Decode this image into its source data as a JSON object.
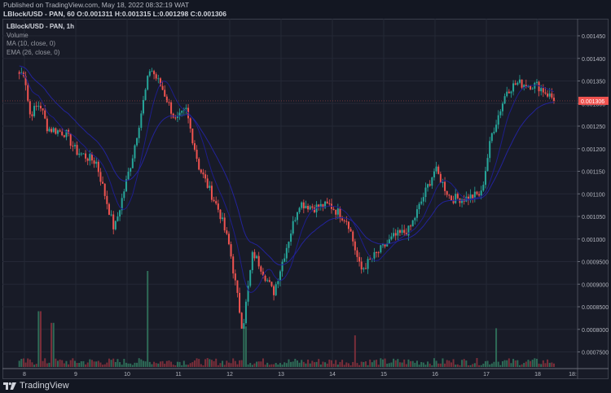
{
  "header": {
    "published": "Published on TradingView.com, May 18, 2022 08:32:19 WAT",
    "symbol_line": "LBlock/USD - PAN, 60",
    "ohlc": {
      "O": "0.001311",
      "H": "0.001315",
      "L": "0.001298",
      "C": "0.001306"
    }
  },
  "legend": {
    "title": "LBlock/USD - PAN, 1h",
    "items": [
      "Volume",
      "MA (10, close, 0)",
      "EMA (26, close, 0)"
    ]
  },
  "footer": {
    "brand": "TradingView"
  },
  "colors": {
    "background": "#181b27",
    "up": "#26a69a",
    "down": "#ef5350",
    "vol_up": "#2e6b57",
    "vol_down": "#7a2e3a",
    "ma": "#1e1e8a",
    "ema": "#23239a",
    "grid": "#242836",
    "last_price_bg": "#f05350"
  },
  "chart_data": {
    "type": "candlestick",
    "title": "LBlock/USD - PAN, 1h",
    "timeframe": "1h",
    "xlabel": "",
    "ylabel": "",
    "x_ticks": [
      "8",
      "9",
      "10",
      "11",
      "12",
      "13",
      "14",
      "15",
      "16",
      "17",
      "18",
      "18:"
    ],
    "y_ticks": [
      "0.001450",
      "0.001400",
      "0.001350",
      "0.001300",
      "0.001250",
      "0.001200",
      "0.001150",
      "0.001100",
      "0.001050",
      "0.001000",
      "0.0009500",
      "0.0009000",
      "0.0008500",
      "0.0008000",
      "0.0007500"
    ],
    "ylim": [
      0.00073,
      0.00148
    ],
    "last_price": "0.001306",
    "grid": true,
    "indicators": [
      "Volume",
      "MA (10, close, 0)",
      "EMA (26, close, 0)"
    ],
    "approx_close_path": [
      {
        "day": 7.9,
        "close": 0.001365
      },
      {
        "day": 8.0,
        "close": 0.00137
      },
      {
        "day": 8.1,
        "close": 0.001275
      },
      {
        "day": 8.3,
        "close": 0.0013
      },
      {
        "day": 8.45,
        "close": 0.001245
      },
      {
        "day": 8.8,
        "close": 0.001235
      },
      {
        "day": 9.0,
        "close": 0.001195
      },
      {
        "day": 9.4,
        "close": 0.00117
      },
      {
        "day": 9.75,
        "close": 0.00102
      },
      {
        "day": 10.1,
        "close": 0.00118
      },
      {
        "day": 10.45,
        "close": 0.00138
      },
      {
        "day": 10.7,
        "close": 0.00133
      },
      {
        "day": 10.95,
        "close": 0.00126
      },
      {
        "day": 11.15,
        "close": 0.001285
      },
      {
        "day": 11.4,
        "close": 0.00116
      },
      {
        "day": 11.8,
        "close": 0.00106
      },
      {
        "day": 12.0,
        "close": 0.00098
      },
      {
        "day": 12.25,
        "close": 0.0008
      },
      {
        "day": 12.45,
        "close": 0.00097
      },
      {
        "day": 12.6,
        "close": 0.00094
      },
      {
        "day": 12.85,
        "close": 0.00088
      },
      {
        "day": 13.35,
        "close": 0.00108
      },
      {
        "day": 13.65,
        "close": 0.00107
      },
      {
        "day": 13.95,
        "close": 0.001075
      },
      {
        "day": 14.3,
        "close": 0.00104
      },
      {
        "day": 14.55,
        "close": 0.00093
      },
      {
        "day": 14.8,
        "close": 0.00096
      },
      {
        "day": 15.2,
        "close": 0.001005
      },
      {
        "day": 15.5,
        "close": 0.00102
      },
      {
        "day": 16.0,
        "close": 0.001155
      },
      {
        "day": 16.3,
        "close": 0.00109
      },
      {
        "day": 16.6,
        "close": 0.00109
      },
      {
        "day": 16.9,
        "close": 0.0011
      },
      {
        "day": 17.1,
        "close": 0.00123
      },
      {
        "day": 17.4,
        "close": 0.00133
      },
      {
        "day": 17.6,
        "close": 0.001345
      },
      {
        "day": 18.0,
        "close": 0.00134
      },
      {
        "day": 18.35,
        "close": 0.001306
      }
    ],
    "volume_spikes": [
      {
        "day": 8.3,
        "rel": 0.55,
        "dir": "down"
      },
      {
        "day": 8.55,
        "rel": 0.42,
        "dir": "up"
      },
      {
        "day": 10.4,
        "rel": 1.0,
        "dir": "up"
      },
      {
        "day": 12.3,
        "rel": 0.38,
        "dir": "down"
      },
      {
        "day": 14.45,
        "rel": 0.28,
        "dir": "down"
      },
      {
        "day": 17.2,
        "rel": 0.36,
        "dir": "up"
      }
    ]
  }
}
